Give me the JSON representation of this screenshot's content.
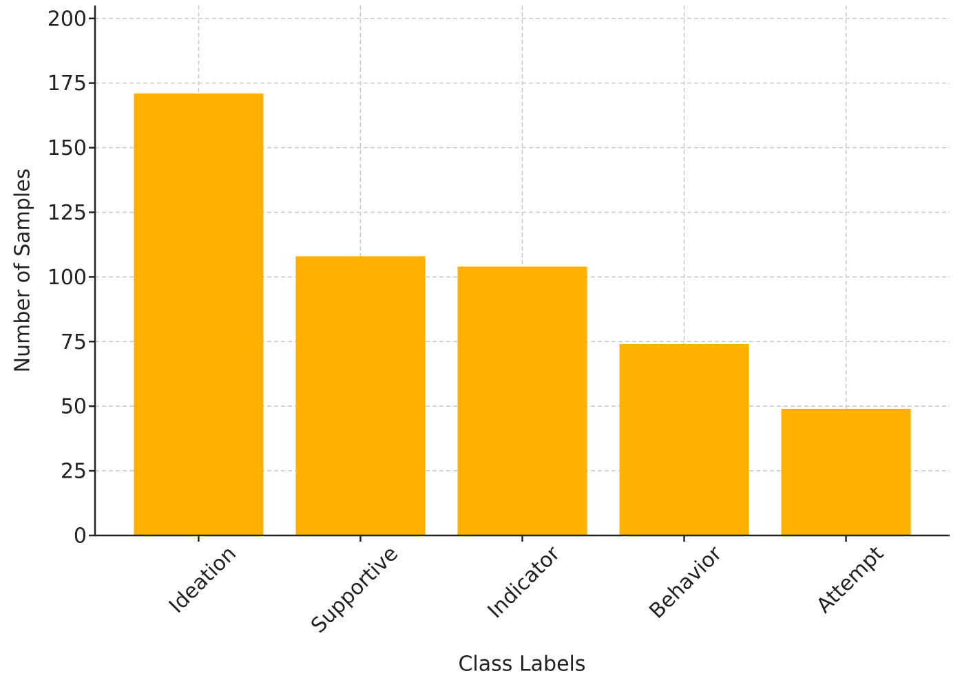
{
  "chart_data": {
    "type": "bar",
    "x_label": "Class Labels",
    "y_label": "Number of Samples",
    "categories": [
      "Ideation",
      "Supportive",
      "Indicator",
      "Behavior",
      "Attempt"
    ],
    "values": [
      171,
      108,
      104,
      74,
      49
    ],
    "color": "#ffb000",
    "ylim": [
      0,
      205
    ],
    "yticks": [
      0,
      25,
      50,
      75,
      100,
      125,
      150,
      175,
      200
    ],
    "grid": true
  }
}
